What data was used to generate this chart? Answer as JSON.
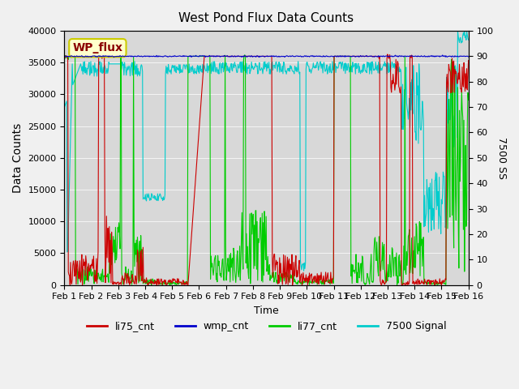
{
  "title": "West Pond Flux Data Counts",
  "ylabel_left": "Data Counts",
  "ylabel_right": "7500 SS",
  "xlabel": "Time",
  "annotation": "WP_flux",
  "ylim_left": [
    0,
    40000
  ],
  "ylim_right": [
    0,
    100
  ],
  "colors": {
    "li75_cnt": "#cc0000",
    "wmp_cnt": "#0000cc",
    "li77_cnt": "#00cc00",
    "signal7500": "#00cccc"
  },
  "legend": [
    "li75_cnt",
    "wmp_cnt",
    "li77_cnt",
    "7500 Signal"
  ],
  "background_color": "#e8e8e8",
  "axes_bg": "#d8d8d8"
}
